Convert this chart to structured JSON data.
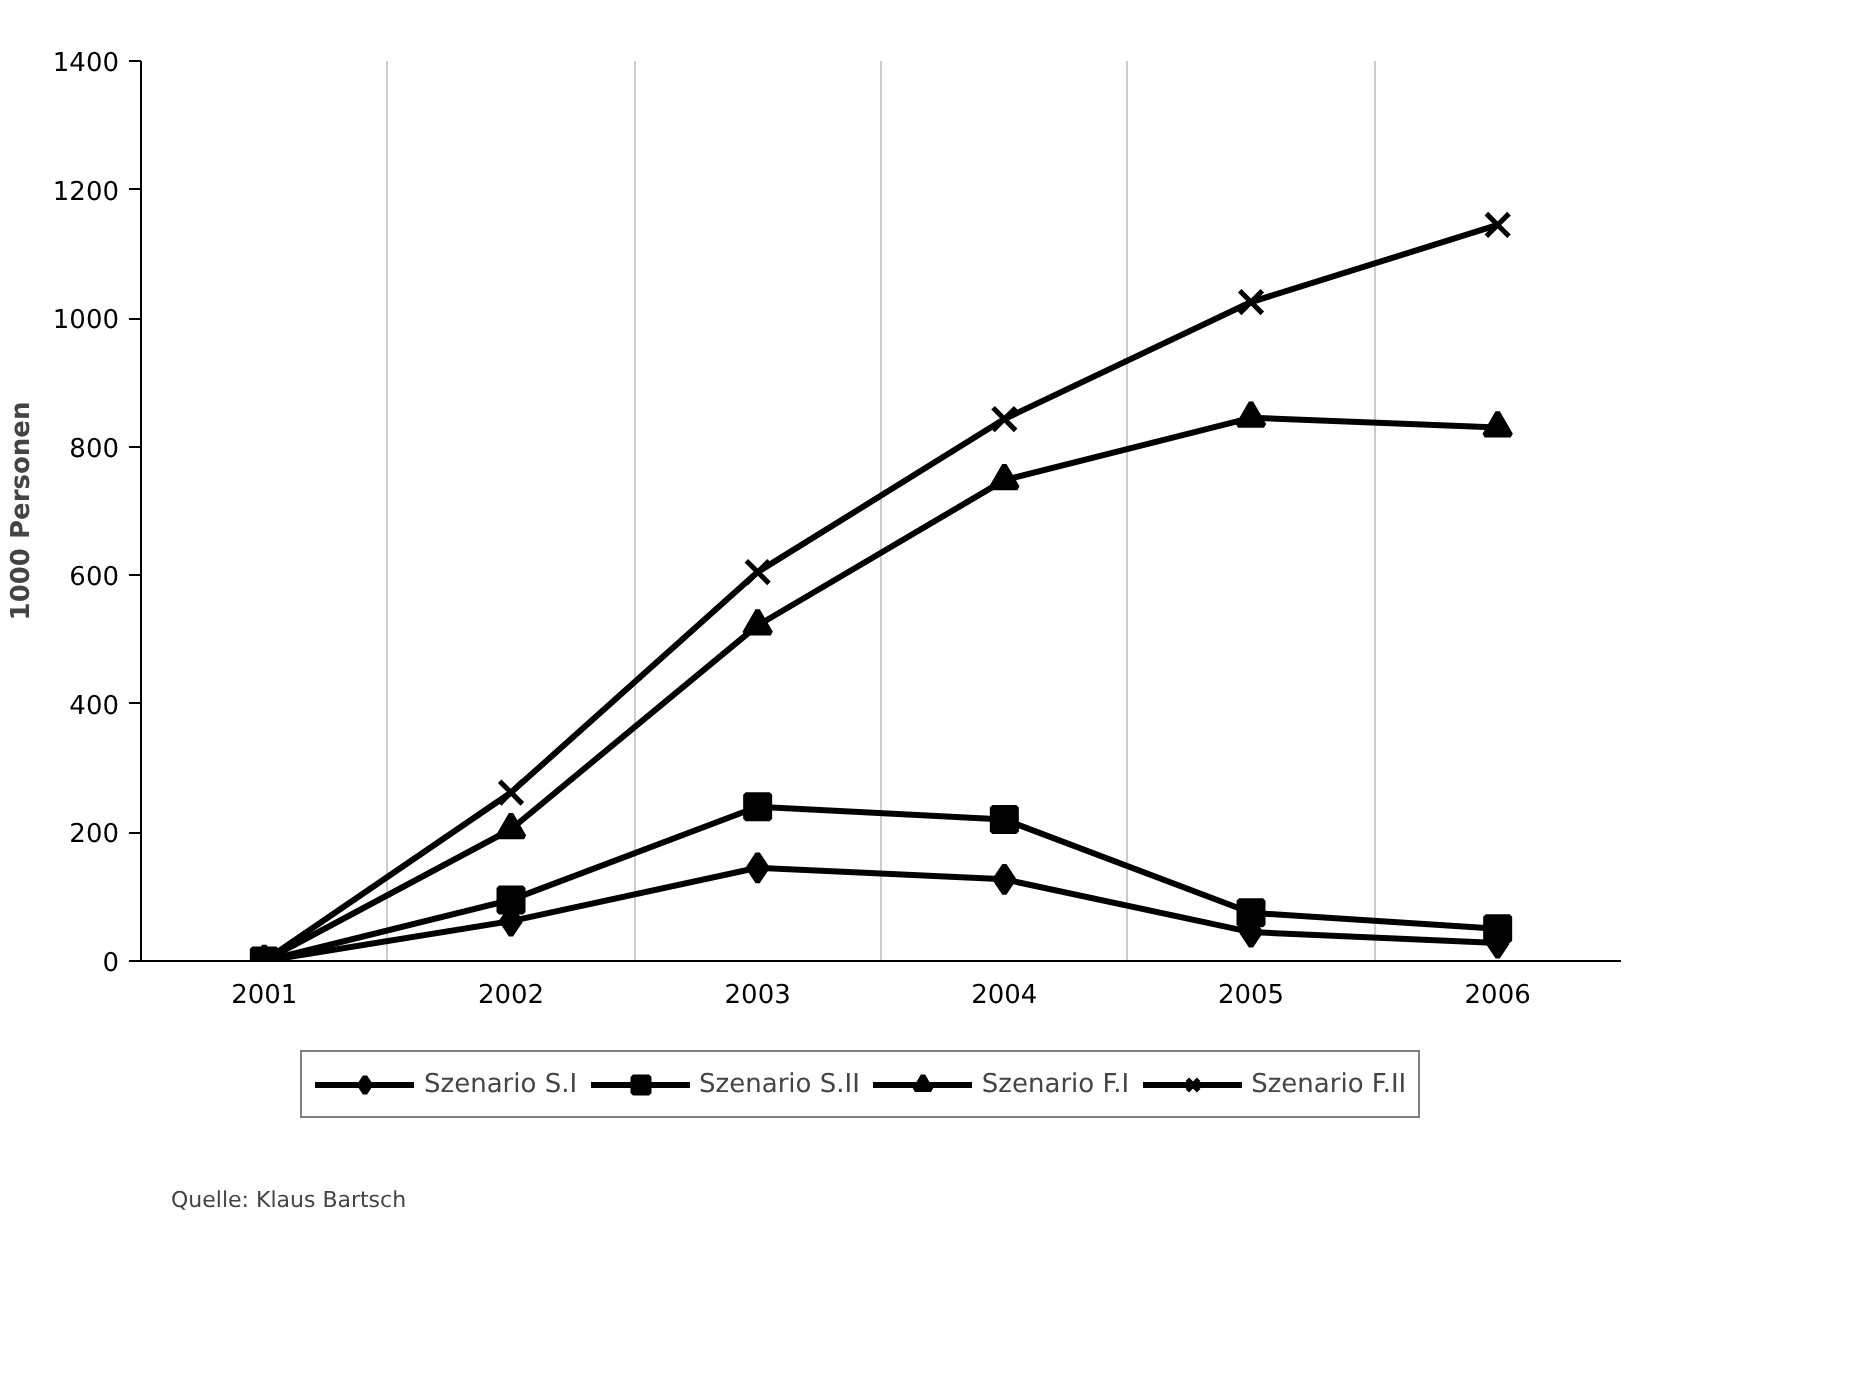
{
  "chart_data": {
    "type": "line",
    "ylabel": "1000 Personen",
    "categories": [
      "2001",
      "2002",
      "2003",
      "2004",
      "2005",
      "2006"
    ],
    "series": [
      {
        "name": "Szenario S.I",
        "color": "#000000",
        "marker": "diamond",
        "values": [
          0,
          62,
          145,
          127,
          45,
          28
        ]
      },
      {
        "name": "Szenario S.II",
        "color": "#000000",
        "marker": "square",
        "values": [
          0,
          95,
          240,
          220,
          75,
          50
        ]
      },
      {
        "name": "Szenario F.I",
        "color": "#000000",
        "marker": "triangle",
        "values": [
          0,
          205,
          522,
          748,
          845,
          830
        ]
      },
      {
        "name": "Szenario F.II",
        "color": "#000000",
        "marker": "x",
        "values": [
          0,
          262,
          605,
          843,
          1025,
          1145
        ]
      }
    ],
    "ylim": [
      0,
      1400
    ],
    "yticks": [
      0,
      200,
      400,
      600,
      800,
      1000,
      1200,
      1400
    ],
    "grid": "x",
    "legend": "bottom",
    "line_style": "solid",
    "annotations": [
      "Quelle: Klaus Bartsch"
    ]
  }
}
